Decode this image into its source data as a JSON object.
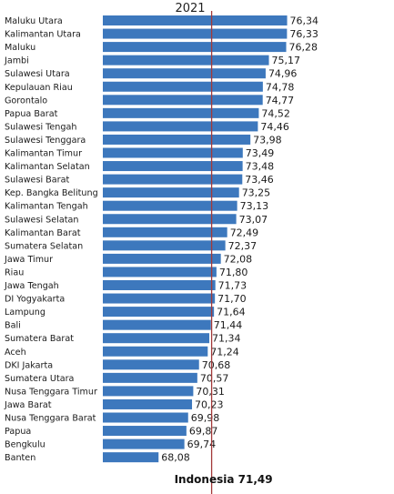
{
  "chart_data": {
    "type": "bar",
    "orientation": "horizontal",
    "title": "2021",
    "categories": [
      "Maluku Utara",
      "Kalimantan Utara",
      "Maluku",
      "Jambi",
      "Sulawesi Utara",
      "Kepulauan Riau",
      "Gorontalo",
      "Papua Barat",
      "Sulawesi Tengah",
      "Sulawesi Tenggara",
      "Kalimantan Timur",
      "Kalimantan Selatan",
      "Sulawesi Barat",
      "Kep. Bangka Belitung",
      "Kalimantan Tengah",
      "Sulawesi Selatan",
      "Kalimantan Barat",
      "Sumatera Selatan",
      "Jawa Timur",
      "Riau",
      "Jawa Tengah",
      "DI Yogyakarta",
      "Lampung",
      "Bali",
      "Sumatera Barat",
      "Aceh",
      "DKI Jakarta",
      "Sumatera Utara",
      "Nusa Tenggara Timur",
      "Jawa Barat",
      "Nusa Tenggara Barat",
      "Papua",
      "Bengkulu",
      "Banten"
    ],
    "values": [
      76.34,
      76.33,
      76.28,
      75.17,
      74.96,
      74.78,
      74.77,
      74.52,
      74.46,
      73.98,
      73.49,
      73.48,
      73.46,
      73.25,
      73.13,
      73.07,
      72.49,
      72.37,
      72.08,
      71.8,
      71.73,
      71.7,
      71.64,
      71.44,
      71.34,
      71.24,
      70.68,
      70.57,
      70.31,
      70.23,
      69.98,
      69.87,
      69.74,
      68.08
    ],
    "value_labels": [
      "76,34",
      "76,33",
      "76,28",
      "75,17",
      "74,96",
      "74,78",
      "74,77",
      "74,52",
      "74,46",
      "73,98",
      "73,49",
      "73,48",
      "73,46",
      "73,25",
      "73,13",
      "73,07",
      "72,49",
      "72,37",
      "72,08",
      "71,80",
      "71,73",
      "71,70",
      "71,64",
      "71,44",
      "71,34",
      "71,24",
      "70,68",
      "70,57",
      "70,31",
      "70,23",
      "69,98",
      "69,87",
      "69,74",
      "68,08"
    ],
    "reference_line": {
      "value": 71.49,
      "label": "Indonesia 71,49"
    },
    "xlim": [
      64.5,
      76.6
    ],
    "bar_color": "#3d78bd",
    "reference_color": "#a33a3a",
    "grid": false
  }
}
